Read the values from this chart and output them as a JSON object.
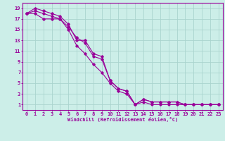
{
  "xlabel": "Windchill (Refroidissement éolien,°C)",
  "bg_color": "#cceee8",
  "grid_color": "#aad4ce",
  "line_color": "#990099",
  "marker": "D",
  "markersize": 1.8,
  "linewidth": 0.8,
  "xlim": [
    -0.5,
    23.5
  ],
  "ylim": [
    0,
    20
  ],
  "xticks": [
    0,
    1,
    2,
    3,
    4,
    5,
    6,
    7,
    8,
    9,
    10,
    11,
    12,
    13,
    14,
    15,
    16,
    17,
    18,
    19,
    20,
    21,
    22,
    23
  ],
  "yticks": [
    1,
    3,
    5,
    7,
    9,
    11,
    13,
    15,
    17,
    19
  ],
  "line1_x": [
    0,
    1,
    2,
    3,
    4,
    5,
    6,
    7,
    8,
    9,
    10,
    11,
    12,
    13,
    14,
    15,
    16,
    17,
    18,
    19,
    20,
    21,
    22,
    23
  ],
  "line1_y": [
    18,
    19,
    18.5,
    18,
    17.5,
    16,
    13,
    13,
    10.5,
    10,
    5.5,
    4,
    3.5,
    1,
    2,
    1.5,
    1.5,
    1.5,
    1.5,
    1,
    1,
    1,
    1,
    1
  ],
  "line2_x": [
    0,
    1,
    2,
    3,
    4,
    5,
    6,
    7,
    8,
    9,
    10,
    11,
    12,
    13,
    14,
    15,
    16,
    17,
    18,
    19,
    20,
    21,
    22,
    23
  ],
  "line2_y": [
    18,
    18.5,
    18,
    17.5,
    17,
    15.5,
    13.5,
    12.5,
    10,
    9.5,
    5.5,
    4,
    3.5,
    1,
    2,
    1.5,
    1.5,
    1.5,
    1.5,
    1,
    1,
    1,
    1,
    1
  ],
  "line3_x": [
    0,
    1,
    2,
    3,
    4,
    5,
    6,
    7,
    8,
    9,
    10,
    11,
    12,
    13,
    14,
    15,
    16,
    17,
    18,
    19,
    20,
    21,
    22,
    23
  ],
  "line3_y": [
    18,
    18,
    17,
    17,
    17,
    15,
    12,
    10.5,
    8.5,
    7,
    5,
    3.5,
    3,
    1,
    1.5,
    1,
    1,
    1,
    1,
    1,
    1,
    1,
    1,
    1
  ],
  "label_fontsize": 5.0,
  "tick_fontsize": 5.0
}
